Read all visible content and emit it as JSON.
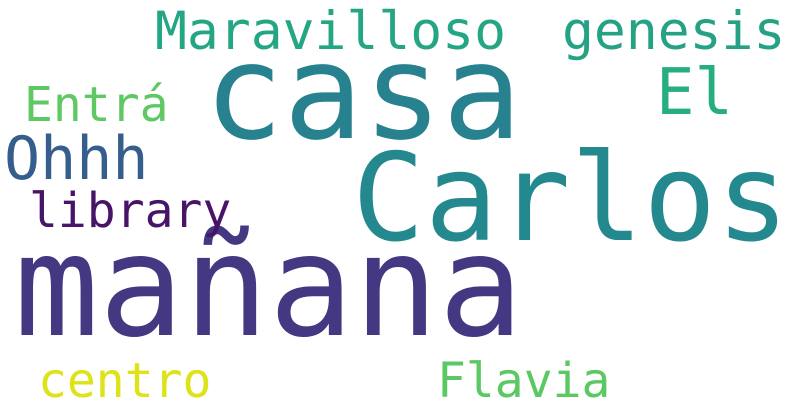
{
  "words": [
    {
      "text": "mañana",
      "color": "#453882"
    },
    {
      "text": "casa",
      "color": "#27818E"
    },
    {
      "text": "Carlos",
      "color": "#23898E"
    },
    {
      "text": "Maravilloso",
      "color": "#24A684"
    },
    {
      "text": "genesis",
      "color": "#25A284"
    },
    {
      "text": "El",
      "color": "#26AD81"
    },
    {
      "text": "Entrá",
      "color": "#5EC962"
    },
    {
      "text": "Ohhh",
      "color": "#355E8D"
    },
    {
      "text": "library",
      "color": "#481467"
    },
    {
      "text": "centro",
      "color": "#DDE318"
    },
    {
      "text": "Flavia",
      "color": "#5CC863"
    }
  ]
}
